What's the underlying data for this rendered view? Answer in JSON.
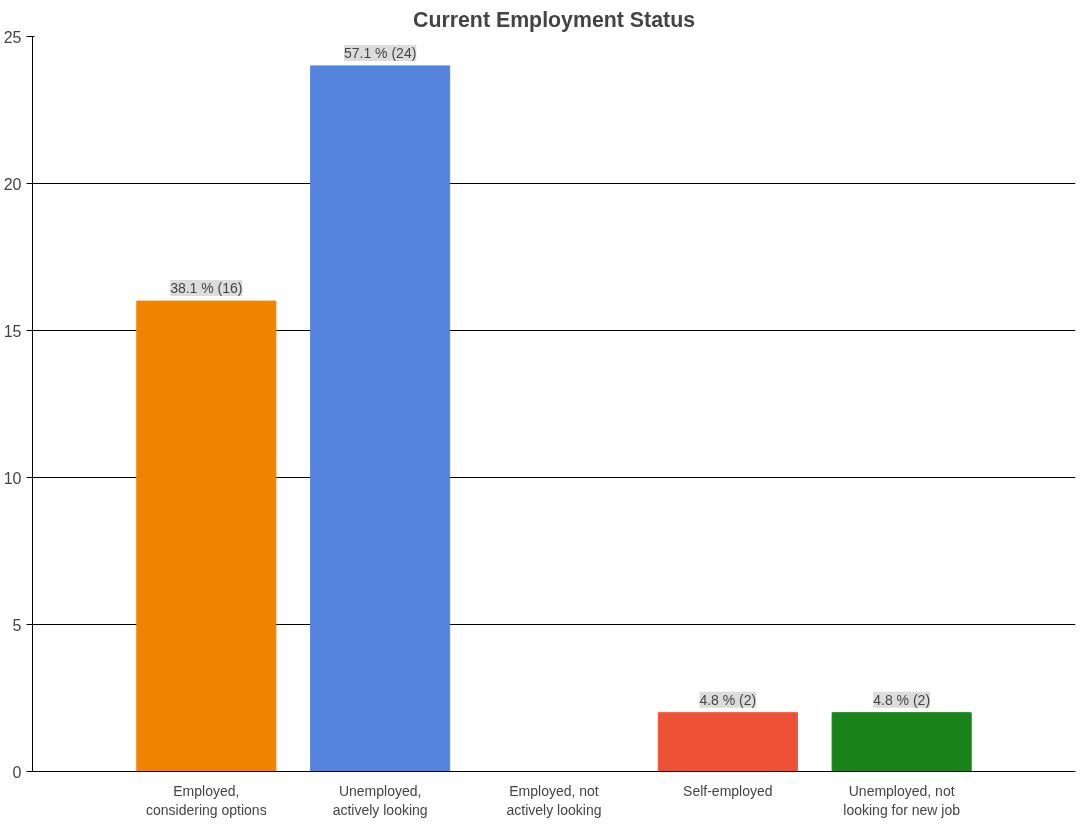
{
  "chart_data": {
    "type": "bar",
    "title": "Current Employment Status",
    "categories": [
      "Employed, considering options",
      "Unemployed, actively looking",
      "Employed, not actively looking",
      "Self-employed",
      "Unemployed, not looking for new job"
    ],
    "values": [
      16,
      24,
      0,
      2,
      2
    ],
    "colors": [
      "#f08400",
      "#5584dc",
      "#000000",
      "#ee5236",
      "#1a841a"
    ],
    "value_labels": [
      "38.1 % (16)",
      "57.1 % (24)",
      null,
      "4.8 % (2)",
      "4.8 % (2)"
    ],
    "ylim": [
      0,
      25
    ],
    "yticks": [
      0,
      5,
      10,
      15,
      20,
      25
    ],
    "grid": "y"
  }
}
